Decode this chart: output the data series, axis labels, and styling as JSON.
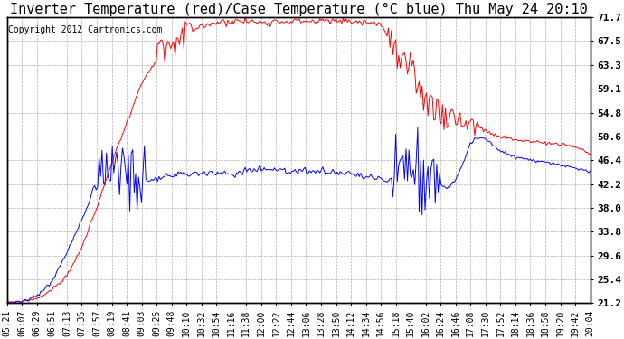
{
  "title": "Inverter Temperature (red)/Case Temperature (°C blue) Thu May 24 20:10",
  "copyright": "Copyright 2012 Cartronics.com",
  "ylabel_right_ticks": [
    21.2,
    25.4,
    29.6,
    33.8,
    38.0,
    42.2,
    46.4,
    50.6,
    54.8,
    59.1,
    63.3,
    67.5,
    71.7
  ],
  "ylim": [
    21.2,
    71.7
  ],
  "x_tick_labels": [
    "05:21",
    "06:07",
    "06:29",
    "06:51",
    "07:13",
    "07:35",
    "07:57",
    "08:19",
    "08:41",
    "09:03",
    "09:25",
    "09:48",
    "10:10",
    "10:32",
    "10:54",
    "11:16",
    "11:38",
    "12:00",
    "12:22",
    "12:44",
    "13:06",
    "13:28",
    "13:50",
    "14:12",
    "14:34",
    "14:56",
    "15:18",
    "15:40",
    "16:02",
    "16:24",
    "16:46",
    "17:08",
    "17:30",
    "17:52",
    "18:14",
    "18:36",
    "18:58",
    "19:20",
    "19:42",
    "20:04"
  ],
  "background_color": "#ffffff",
  "grid_color": "#b0b0b0",
  "red_color": "#ff0000",
  "blue_color": "#0000ff",
  "title_fontsize": 11,
  "tick_fontsize": 7,
  "copyright_fontsize": 7
}
